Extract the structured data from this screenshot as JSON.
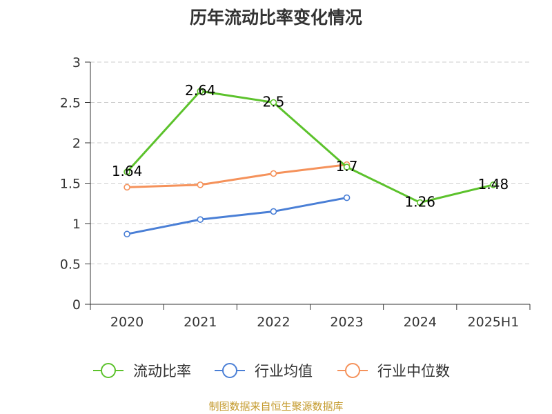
{
  "chart_data": {
    "type": "line",
    "title": "历年流动比率变化情况",
    "categories": [
      "2020",
      "2021",
      "2022",
      "2023",
      "2024",
      "2025H1"
    ],
    "y_ticks": [
      "0",
      "0.5",
      "1",
      "1.5",
      "2",
      "2.5",
      "3"
    ],
    "ylim": [
      0,
      3
    ],
    "grid": true,
    "legend_position": "bottom",
    "series": [
      {
        "name": "流动比率",
        "color": "#5cc22c",
        "values": [
          1.64,
          2.64,
          2.5,
          1.7,
          1.26,
          1.48
        ],
        "labels": [
          "1.64",
          "2.64",
          "2.5",
          "1.7",
          "1.26",
          "1.48"
        ]
      },
      {
        "name": "行业均值",
        "color": "#4a7fd6",
        "values": [
          0.87,
          1.05,
          1.15,
          1.32,
          null,
          null
        ]
      },
      {
        "name": "行业中位数",
        "color": "#f5925b",
        "values": [
          1.45,
          1.48,
          1.62,
          1.73,
          null,
          null
        ]
      }
    ]
  },
  "footer": {
    "source": "制图数据来自恒生聚源数据库"
  }
}
